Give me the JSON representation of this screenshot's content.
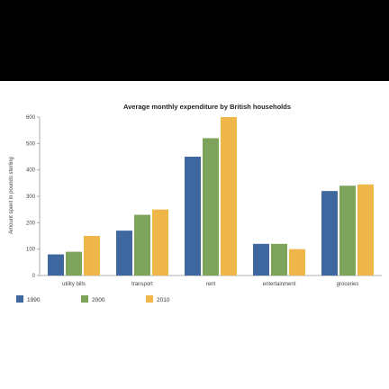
{
  "chart_data": {
    "type": "bar",
    "title": "Average monthly expenditure by British households",
    "xlabel": "",
    "ylabel": "Amount spent in pounds sterling",
    "ylim": [
      0,
      600
    ],
    "yticks": [
      0,
      100,
      200,
      300,
      400,
      500,
      600
    ],
    "grid": false,
    "legend_position": "bottom-left",
    "categories": [
      "utility bills",
      "transport",
      "rent",
      "entertainment",
      "groceries"
    ],
    "series": [
      {
        "name": "1990",
        "color": "#3f67a0",
        "values": [
          80,
          170,
          450,
          120,
          320
        ]
      },
      {
        "name": "2000",
        "color": "#7ea35a",
        "values": [
          90,
          230,
          520,
          120,
          340
        ]
      },
      {
        "name": "2010",
        "color": "#efb64a",
        "values": [
          150,
          250,
          600,
          100,
          345
        ]
      }
    ]
  }
}
